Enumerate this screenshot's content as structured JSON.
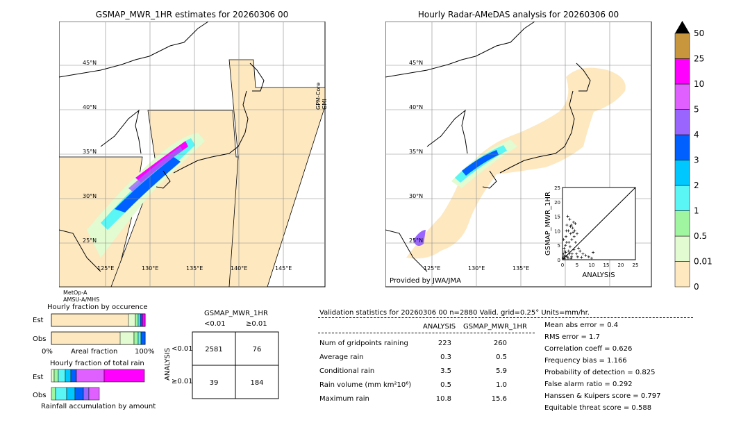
{
  "left_panel": {
    "title": "GSMAP_MWR_1HR estimates for 20260306 00",
    "side_label": "GPM-Core GMI",
    "sat_label_1": "MetOp-A",
    "sat_label_2": "AMSU-A/MHS",
    "lat_labels": [
      "45°N",
      "40°N",
      "35°N",
      "30°N",
      "25°N"
    ],
    "lon_labels": [
      "125°E",
      "130°E",
      "135°E",
      "140°E",
      "145°E"
    ]
  },
  "right_panel": {
    "title": "Hourly Radar-AMeDAS analysis for 20260306 00",
    "provider": "Provided by JWA/JMA",
    "lat_labels": [
      "45°N",
      "40°N",
      "35°N",
      "30°N",
      "25°N"
    ],
    "lon_labels": [
      "125°E",
      "130°E",
      "135°E"
    ]
  },
  "colorbar": {
    "labels": [
      "0",
      "0.01",
      "0.5",
      "1",
      "2",
      "3",
      "4",
      "5",
      "10",
      "25",
      "50"
    ],
    "colors": [
      "#fde8c0",
      "#e2fbd0",
      "#a0f5a0",
      "#5af5f5",
      "#00c8ff",
      "#0060ff",
      "#9a64ff",
      "#e060ff",
      "#ff00ff",
      "#c8963c"
    ]
  },
  "scatter": {
    "ylabel": "GSMAP_MWR_1HR",
    "xlabel": "ANALYSIS",
    "ticks": [
      "0",
      "5",
      "10",
      "15",
      "20",
      "25"
    ]
  },
  "fraction_occurrence": {
    "title": "Hourly fraction by occurence",
    "row_est": "Est",
    "row_obs": "Obs",
    "axis_left": "0%",
    "axis_mid": "Areal fraction",
    "axis_right": "100%"
  },
  "fraction_total": {
    "title": "Hourly fraction of total rain",
    "row_est": "Est",
    "row_obs": "Obs",
    "footer": "Rainfall accumulation by amount"
  },
  "contingency": {
    "title": "GSMAP_MWR_1HR",
    "col_lt": "<0.01",
    "col_ge": "≥0.01",
    "side": "ANALYSIS",
    "row_lt": "<0.01",
    "row_ge": "≥0.01",
    "a": "2581",
    "b": "76",
    "c": "39",
    "d": "184"
  },
  "validation": {
    "header": "Validation statistics for 20260306 00  n=2880 Valid. grid=0.25° Units=mm/hr.",
    "col1": "ANALYSIS",
    "col2": "GSMAP_MWR_1HR",
    "rows": [
      {
        "label": "Num of gridpoints raining",
        "a": "223",
        "b": "260"
      },
      {
        "label": "Average rain",
        "a": "0.3",
        "b": "0.5"
      },
      {
        "label": "Conditional rain",
        "a": "3.5",
        "b": "5.9"
      },
      {
        "label": "Rain volume (mm km²10⁶)",
        "a": "0.5",
        "b": "1.0"
      },
      {
        "label": "Maximum rain",
        "a": "10.8",
        "b": "15.6"
      }
    ],
    "scores": [
      "Mean abs error =    0.4",
      "RMS error =    1.7",
      "Correlation coeff =  0.626",
      "Frequency bias =  1.166",
      "Probability of detection =  0.825",
      "False alarm ratio =  0.292",
      "Hanssen & Kuipers score =  0.797",
      "Equitable threat score =  0.588"
    ]
  },
  "chart_data": {
    "type": "scatter",
    "xlabel": "ANALYSIS",
    "ylabel": "GSMAP_MWR_1HR",
    "xlim": [
      0,
      25
    ],
    "ylim": [
      0,
      25
    ],
    "points": [
      [
        0.5,
        1
      ],
      [
        0.8,
        3
      ],
      [
        1,
        5
      ],
      [
        1.2,
        8
      ],
      [
        1.5,
        12
      ],
      [
        1.8,
        15
      ],
      [
        2,
        10
      ],
      [
        2.2,
        6
      ],
      [
        2.5,
        14
      ],
      [
        2.8,
        9
      ],
      [
        3,
        12
      ],
      [
        3.2,
        7
      ],
      [
        3.5,
        11
      ],
      [
        3.8,
        13
      ],
      [
        4,
        8
      ],
      [
        4.2,
        10
      ],
      [
        4.5,
        6
      ],
      [
        5,
        9
      ],
      [
        5.5,
        4
      ],
      [
        6,
        3
      ],
      [
        7,
        2
      ],
      [
        8,
        1.5
      ],
      [
        9,
        1
      ],
      [
        10,
        0.5
      ],
      [
        0.3,
        2
      ],
      [
        0.6,
        4
      ],
      [
        1.1,
        2.5
      ],
      [
        1.4,
        6
      ],
      [
        2.1,
        3
      ],
      [
        2.6,
        4.5
      ],
      [
        3.3,
        2
      ],
      [
        3.9,
        3.5
      ],
      [
        4.8,
        2
      ],
      [
        0.2,
        0.5
      ],
      [
        0.9,
        1.5
      ],
      [
        1.6,
        1
      ],
      [
        2.4,
        2
      ],
      [
        3.1,
        1
      ],
      [
        0.4,
        7
      ],
      [
        1.3,
        10
      ],
      [
        2.7,
        11.5
      ],
      [
        3.6,
        9.5
      ],
      [
        4.4,
        12.5
      ],
      [
        5.2,
        1
      ],
      [
        6.5,
        0.8
      ],
      [
        10.5,
        2.5
      ],
      [
        0.7,
        0.3
      ],
      [
        1.9,
        0.6
      ],
      [
        2.9,
        0.4
      ]
    ]
  }
}
